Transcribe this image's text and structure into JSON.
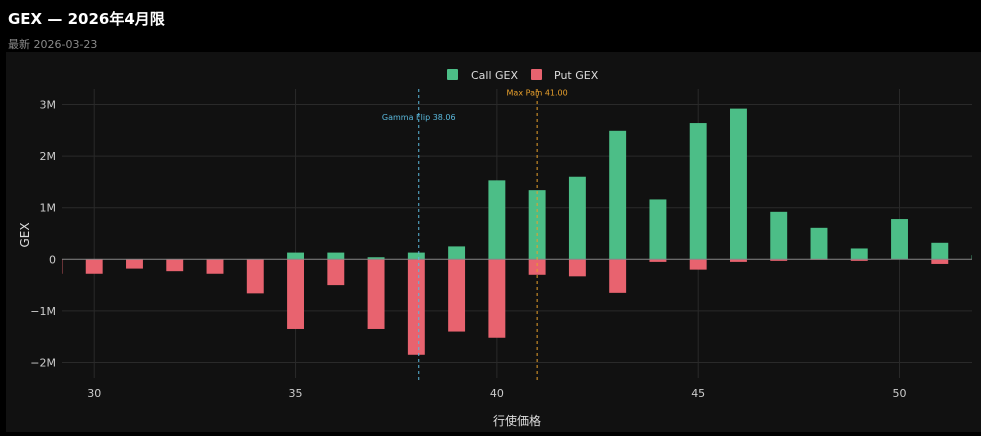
{
  "header": {
    "title": "GEX — 2026年4月限",
    "subtitle": "最新 2026-03-23"
  },
  "colors": {
    "call": "#4cbe87",
    "put": "#e8636f",
    "gamma_flip": "#5ab8dc",
    "max_pain": "#e8a02c",
    "grid": "#2a2a2a",
    "text": "#cccccc",
    "background": "#111111"
  },
  "chart_data": {
    "type": "bar",
    "xlabel": "行使価格",
    "ylabel": "GEX",
    "xlim": [
      29.2,
      51.8
    ],
    "ylim": [
      -2.3,
      3.3
    ],
    "x_ticks": [
      30,
      35,
      40,
      45,
      50
    ],
    "x_tick_labels": [
      "30",
      "35",
      "40",
      "45",
      "50"
    ],
    "y_ticks": [
      -2,
      -1,
      0,
      1,
      2,
      3
    ],
    "y_tick_labels": [
      "−2M",
      "−1M",
      "0",
      "1M",
      "2M",
      "3M"
    ],
    "grid": true,
    "legend": {
      "position": "top-center",
      "entries": [
        "Call GEX",
        "Put GEX"
      ]
    },
    "series": [
      {
        "name": "Call GEX",
        "color": "#4cbe87",
        "x": [
          30,
          31,
          32,
          33,
          34,
          35,
          36,
          37,
          38,
          39,
          40,
          41,
          42,
          43,
          44,
          45,
          46,
          47,
          48,
          49,
          50,
          51,
          52
        ],
        "values": [
          0,
          0,
          0,
          0,
          0,
          0.13,
          0.13,
          0.04,
          0.13,
          0.25,
          1.53,
          1.34,
          1.6,
          2.49,
          1.16,
          2.64,
          2.92,
          0.92,
          0.61,
          0.21,
          0.78,
          0.32,
          0.08
        ]
      },
      {
        "name": "Put GEX",
        "color": "#e8636f",
        "x": [
          29,
          30,
          31,
          32,
          33,
          34,
          35,
          36,
          37,
          38,
          39,
          40,
          41,
          42,
          43,
          44,
          45,
          46,
          47,
          48,
          49,
          50,
          51
        ],
        "values": [
          -0.28,
          -0.28,
          -0.18,
          -0.23,
          -0.28,
          -0.66,
          -1.35,
          -0.5,
          -1.35,
          -1.85,
          -1.4,
          -1.52,
          -0.3,
          -0.33,
          -0.65,
          -0.05,
          -0.2,
          -0.05,
          -0.03,
          -0.01,
          -0.03,
          0,
          -0.09
        ]
      }
    ],
    "annotations": [
      {
        "label": "Gamma Flip 38.06",
        "x": 38.06,
        "color": "#5ab8dc",
        "label_y": 2.7
      },
      {
        "label": "Max Pain 41.00",
        "x": 41.0,
        "color": "#e8a02c",
        "label_y": 3.17
      }
    ]
  }
}
